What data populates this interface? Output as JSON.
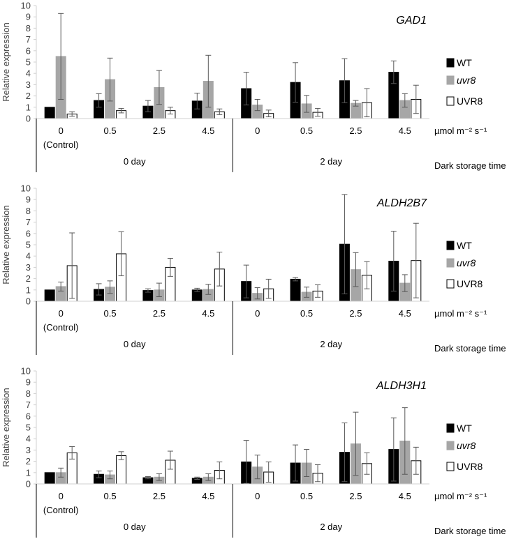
{
  "chart_data": [
    {
      "type": "bar",
      "gene": "GAD1",
      "ylabel": "Relative expression",
      "ylim": [
        0,
        10
      ],
      "yticks": [
        0,
        1,
        2,
        3,
        4,
        5,
        6,
        7,
        8,
        9,
        10
      ],
      "categories": [
        "0",
        "0.5",
        "2.5",
        "4.5",
        "0",
        "0.5",
        "2.5",
        "4.5"
      ],
      "control_label": "(Control)",
      "unit_label": "µmol m⁻² s⁻¹",
      "groups": [
        {
          "label": "0 day"
        },
        {
          "label": "2 day"
        }
      ],
      "group_axis_label": "Dark storage time",
      "legend_position": "right",
      "series": [
        {
          "name": "WT",
          "color": "#000000",
          "values": [
            1.0,
            1.6,
            1.1,
            1.55,
            2.65,
            3.2,
            3.35,
            4.1
          ],
          "errors": [
            0.0,
            0.6,
            0.5,
            0.7,
            1.45,
            1.75,
            1.95,
            1.0
          ]
        },
        {
          "name": "uvr8",
          "color": "#a6a6a6",
          "values": [
            5.5,
            3.45,
            2.75,
            3.3,
            1.2,
            1.3,
            1.35,
            1.6
          ],
          "errors": [
            3.8,
            1.9,
            1.5,
            2.3,
            0.5,
            0.75,
            0.25,
            0.6
          ]
        },
        {
          "name": "UVR8",
          "color": "#ffffff",
          "values": [
            0.4,
            0.7,
            0.7,
            0.6,
            0.45,
            0.55,
            1.4,
            1.7
          ],
          "errors": [
            0.2,
            0.2,
            0.3,
            0.25,
            0.3,
            0.35,
            1.25,
            1.25
          ]
        }
      ]
    },
    {
      "type": "bar",
      "gene": "ALDH2B7",
      "ylabel": "Relative expression",
      "ylim": [
        0,
        10
      ],
      "yticks": [
        0,
        1,
        2,
        3,
        4,
        5,
        6,
        7,
        8,
        9,
        10
      ],
      "categories": [
        "0",
        "0.5",
        "2.5",
        "4.5",
        "0",
        "0.5",
        "2.5",
        "4.5"
      ],
      "control_label": "(Control)",
      "unit_label": "µmol m⁻² s⁻¹",
      "groups": [
        {
          "label": "0 day"
        },
        {
          "label": "2 day"
        }
      ],
      "group_axis_label": "Dark storage time",
      "legend_position": "right",
      "series": [
        {
          "name": "WT",
          "color": "#000000",
          "values": [
            1.0,
            1.05,
            0.95,
            1.0,
            1.75,
            1.95,
            5.05,
            3.55
          ],
          "errors": [
            0.0,
            0.5,
            0.15,
            0.15,
            1.45,
            0.15,
            4.4,
            2.65
          ]
        },
        {
          "name": "uvr8",
          "color": "#a6a6a6",
          "values": [
            1.3,
            1.25,
            1.0,
            1.05,
            0.7,
            0.8,
            2.8,
            1.6
          ],
          "errors": [
            0.4,
            0.55,
            0.6,
            0.45,
            0.5,
            0.45,
            1.5,
            0.75
          ]
        },
        {
          "name": "UVR8",
          "color": "#ffffff",
          "values": [
            3.15,
            4.2,
            3.0,
            2.85,
            1.1,
            0.9,
            2.3,
            3.6
          ],
          "errors": [
            2.9,
            1.95,
            0.8,
            1.5,
            0.85,
            0.55,
            1.2,
            3.3
          ]
        }
      ]
    },
    {
      "type": "bar",
      "gene": "ALDH3H1",
      "ylabel": "Relative expression",
      "ylim": [
        0,
        10
      ],
      "yticks": [
        0,
        1,
        2,
        3,
        4,
        5,
        6,
        7,
        8,
        9,
        10
      ],
      "categories": [
        "0",
        "0.5",
        "2.5",
        "4.5",
        "0",
        "0.5",
        "2.5",
        "4.5"
      ],
      "control_label": "(Control)",
      "unit_label": "µmol m⁻² s⁻¹",
      "groups": [
        {
          "label": "0 day"
        },
        {
          "label": "2 day"
        }
      ],
      "group_axis_label": "Dark storage time",
      "legend_position": "right",
      "series": [
        {
          "name": "WT",
          "color": "#000000",
          "values": [
            1.0,
            0.85,
            0.55,
            0.5,
            1.95,
            1.85,
            2.8,
            3.05
          ],
          "errors": [
            0.0,
            0.3,
            0.1,
            0.1,
            1.9,
            1.6,
            2.6,
            2.8
          ]
        },
        {
          "name": "uvr8",
          "color": "#a6a6a6",
          "values": [
            1.0,
            0.8,
            0.6,
            0.6,
            1.5,
            1.85,
            3.55,
            3.8
          ],
          "errors": [
            0.4,
            0.35,
            0.3,
            0.3,
            1.05,
            1.2,
            2.8,
            2.95
          ]
        },
        {
          "name": "UVR8",
          "color": "#ffffff",
          "values": [
            2.75,
            2.5,
            2.1,
            1.2,
            1.05,
            0.95,
            1.8,
            2.05
          ],
          "errors": [
            0.55,
            0.35,
            0.8,
            0.75,
            0.9,
            0.75,
            0.95,
            1.2
          ]
        }
      ]
    }
  ]
}
